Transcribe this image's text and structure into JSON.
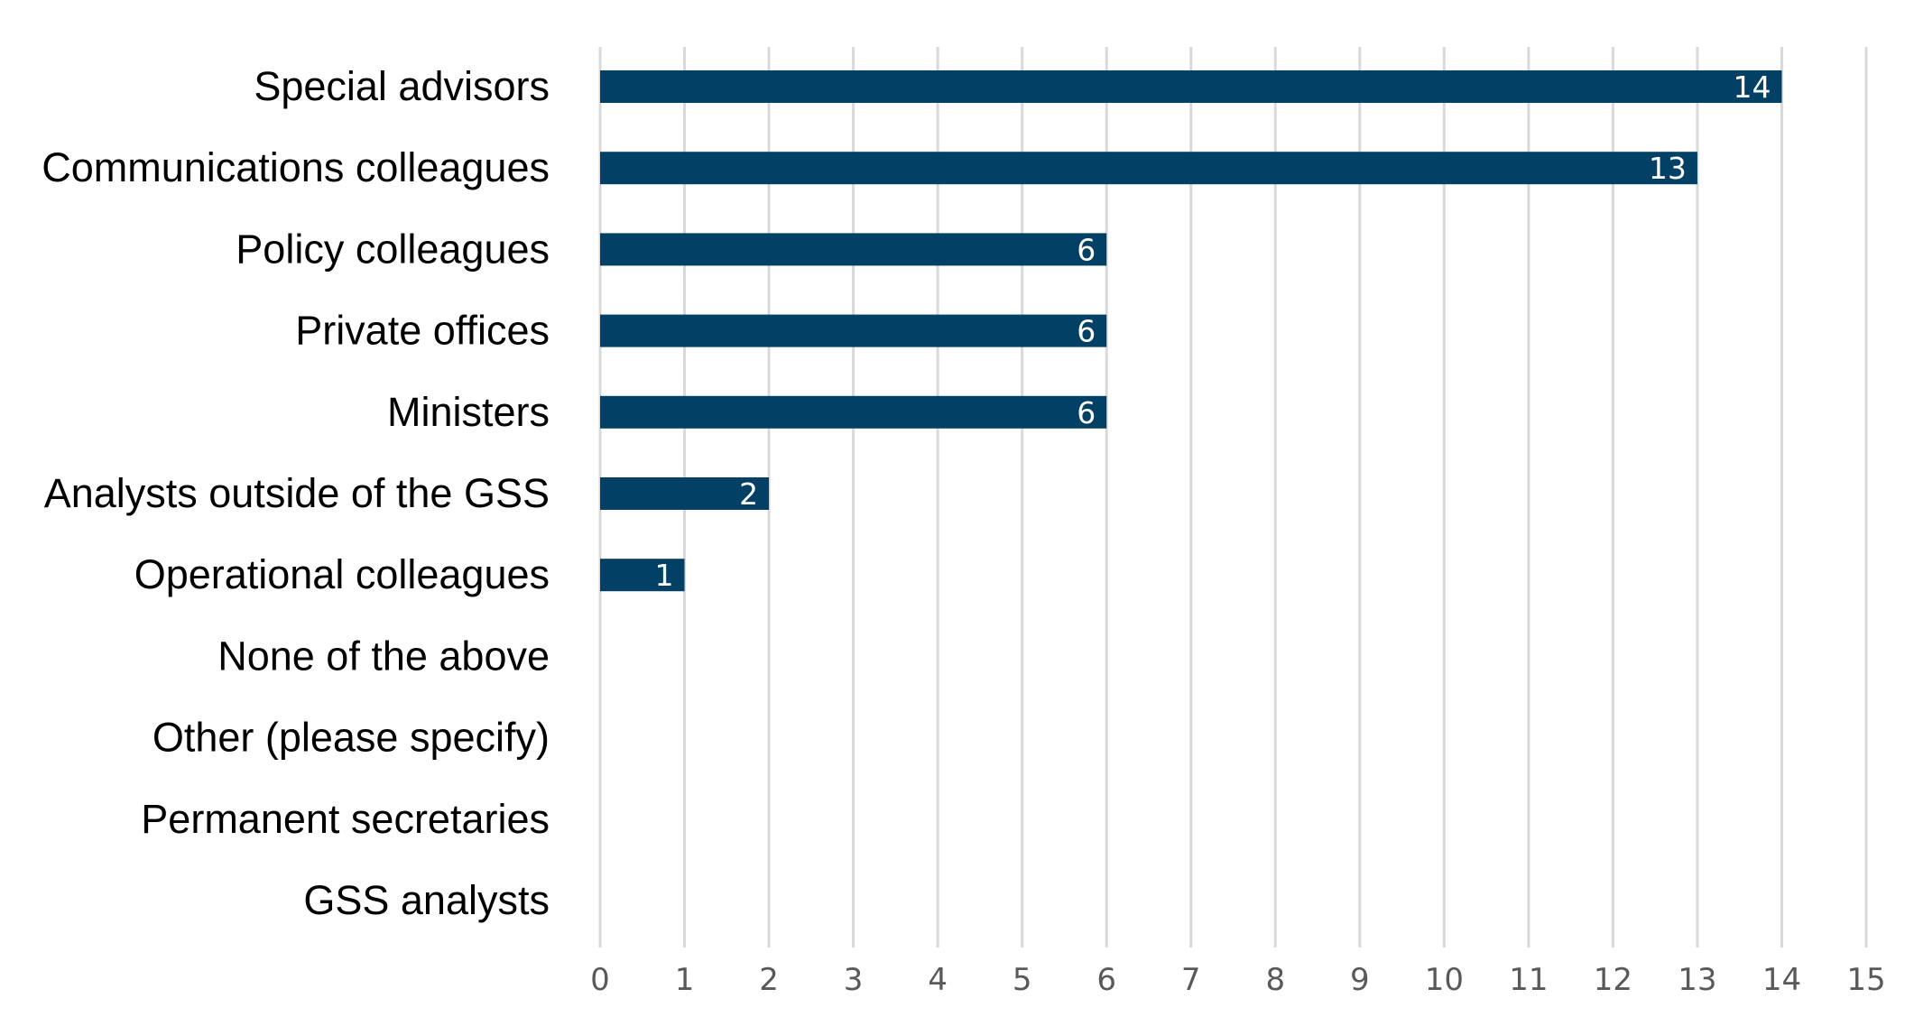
{
  "chart_data": {
    "type": "bar",
    "orientation": "horizontal",
    "title": "",
    "xlabel": "",
    "ylabel": "",
    "categories": [
      "Special advisors",
      "Communications colleagues",
      "Policy colleagues ",
      "Private offices",
      "Ministers",
      "Analysts outside of the GSS",
      "Operational colleagues",
      "None of the above",
      "Other (please specify)",
      "Permanent secretaries",
      "GSS analysts "
    ],
    "values": [
      14,
      13,
      6,
      6,
      6,
      2,
      1,
      0,
      0,
      0,
      0
    ],
    "xlim": [
      0,
      15
    ],
    "xticks": [
      0,
      1,
      2,
      3,
      4,
      5,
      6,
      7,
      8,
      9,
      10,
      11,
      12,
      13,
      14,
      15
    ],
    "grid": "vertical",
    "data_labels": true,
    "bar_color": "#024165",
    "grid_color": "#d9d9d9"
  }
}
